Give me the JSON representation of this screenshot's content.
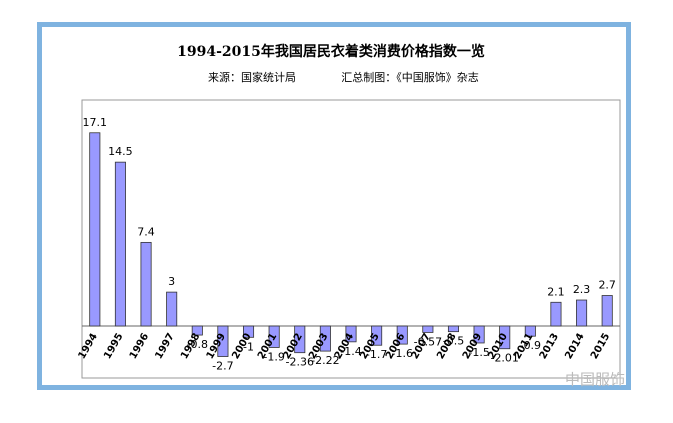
{
  "chart_data": {
    "type": "bar",
    "title": "1994-2015年我国居民衣着类消费价格指数一览",
    "subtitle": [
      "来源：国家统计局",
      "汇总制图：《中国服饰》杂志"
    ],
    "watermark": "中国服饰",
    "categories": [
      "1994",
      "1995",
      "1996",
      "1997",
      "1998",
      "1999",
      "2000",
      "2001",
      "2002",
      "2003",
      "2004",
      "2005",
      "2006",
      "2007",
      "2008",
      "2009",
      "2010",
      "2011",
      "2013",
      "2014",
      "2015"
    ],
    "values": [
      17.1,
      14.5,
      7.4,
      3,
      -0.8,
      -2.7,
      -1,
      -1.9,
      -2.36,
      -2.22,
      -1.4,
      -1.7,
      -1.6,
      -0.57,
      -0.5,
      -1.5,
      -2.01,
      -0.9,
      2.1,
      2.3,
      2.7
    ],
    "color": "#9999ff",
    "ylim": [
      -4.6,
      20
    ]
  }
}
